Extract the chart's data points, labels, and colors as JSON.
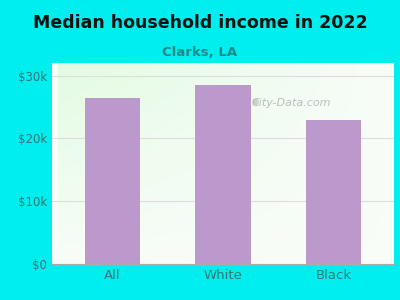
{
  "title": "Median household income in 2022",
  "subtitle": "Clarks, LA",
  "categories": [
    "All",
    "White",
    "Black"
  ],
  "values": [
    26500,
    28500,
    23000
  ],
  "bar_color": "#bb99cc",
  "background_outer": "#00eeee",
  "title_color": "#111111",
  "subtitle_color": "#228888",
  "tick_color": "#337777",
  "ylim": [
    0,
    32000
  ],
  "yticks": [
    0,
    10000,
    20000,
    30000
  ],
  "ytick_labels": [
    "$0",
    "$10k",
    "$20k",
    "$30k"
  ],
  "watermark": "City-Data.com",
  "grid_color": "#dddddd"
}
